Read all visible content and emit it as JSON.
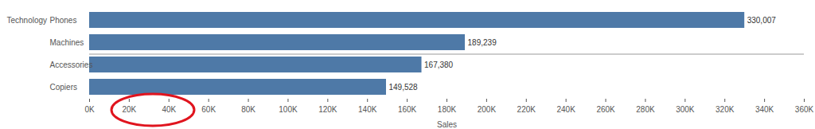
{
  "chart_data": {
    "type": "bar",
    "orientation": "horizontal",
    "group_label": "Technology",
    "categories": [
      "Phones",
      "Machines",
      "Accessories",
      "Copiers"
    ],
    "values": [
      330007,
      189239,
      167380,
      149528
    ],
    "value_labels": [
      "330,007",
      "189,239",
      "167,380",
      "149,528"
    ],
    "data_labels": true,
    "color": "#4e79a7",
    "grid": false,
    "xlabel": "Sales",
    "xlim": [
      0,
      360000
    ],
    "xticks": [
      {
        "value": 0,
        "label": "0K"
      },
      {
        "value": 20000,
        "label": "20K"
      },
      {
        "value": 40000,
        "label": "40K"
      },
      {
        "value": 60000,
        "label": "60K"
      },
      {
        "value": 80000,
        "label": "80K"
      },
      {
        "value": 100000,
        "label": "100K"
      },
      {
        "value": 120000,
        "label": "120K"
      },
      {
        "value": 140000,
        "label": "140K"
      },
      {
        "value": 160000,
        "label": "160K"
      },
      {
        "value": 180000,
        "label": "180K"
      },
      {
        "value": 200000,
        "label": "200K"
      },
      {
        "value": 220000,
        "label": "220K"
      },
      {
        "value": 240000,
        "label": "240K"
      },
      {
        "value": 260000,
        "label": "260K"
      },
      {
        "value": 280000,
        "label": "280K"
      },
      {
        "value": 300000,
        "label": "300K"
      },
      {
        "value": 320000,
        "label": "320K"
      },
      {
        "value": 340000,
        "label": "340K"
      },
      {
        "value": 360000,
        "label": "360K"
      }
    ]
  }
}
